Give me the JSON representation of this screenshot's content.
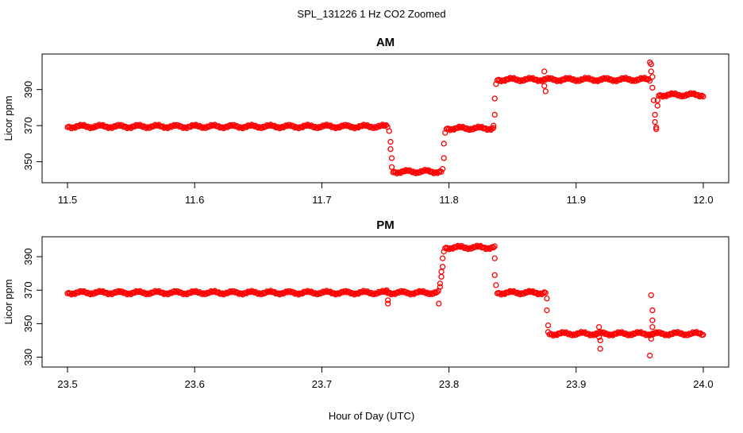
{
  "figure": {
    "title": "SPL_131226  1 Hz CO2 Zoomed",
    "xlabel": "Hour of Day (UTC)"
  },
  "chart_data": [
    {
      "type": "scatter",
      "title": "AM",
      "ylabel": "Licor ppm",
      "xlim": [
        11.5,
        12.0
      ],
      "ylim": [
        341,
        407
      ],
      "xticks": [
        "11.5",
        "11.6",
        "11.7",
        "11.8",
        "11.9",
        "12.0"
      ],
      "yticks": [
        "350",
        "370",
        "390"
      ],
      "marker_color": "#ff0000",
      "series": [
        {
          "segments": [
            {
              "x_start": 11.5,
              "x_end": 11.752,
              "y": 369.5
            },
            {
              "x_start": 11.756,
              "x_end": 11.794,
              "y": 344.5
            },
            {
              "x_start": 11.798,
              "x_end": 11.835,
              "y": 368.5
            },
            {
              "x_start": 11.838,
              "x_end": 11.958,
              "y": 395.5
            },
            {
              "x_start": 11.965,
              "x_end": 12.0,
              "y": 387.0
            }
          ],
          "points": [
            {
              "x": 11.753,
              "y": 367
            },
            {
              "x": 11.754,
              "y": 361
            },
            {
              "x": 11.754,
              "y": 357
            },
            {
              "x": 11.755,
              "y": 352
            },
            {
              "x": 11.755,
              "y": 347
            },
            {
              "x": 11.795,
              "y": 346
            },
            {
              "x": 11.796,
              "y": 352
            },
            {
              "x": 11.796,
              "y": 360
            },
            {
              "x": 11.797,
              "y": 366
            },
            {
              "x": 11.835,
              "y": 370
            },
            {
              "x": 11.836,
              "y": 376
            },
            {
              "x": 11.836,
              "y": 385
            },
            {
              "x": 11.837,
              "y": 393
            },
            {
              "x": 11.875,
              "y": 400
            },
            {
              "x": 11.875,
              "y": 392
            },
            {
              "x": 11.876,
              "y": 389
            },
            {
              "x": 11.958,
              "y": 405
            },
            {
              "x": 11.959,
              "y": 404
            },
            {
              "x": 11.959,
              "y": 400
            },
            {
              "x": 11.96,
              "y": 397
            },
            {
              "x": 11.96,
              "y": 391
            },
            {
              "x": 11.961,
              "y": 384
            },
            {
              "x": 11.962,
              "y": 376
            },
            {
              "x": 11.962,
              "y": 372
            },
            {
              "x": 11.963,
              "y": 369
            },
            {
              "x": 11.963,
              "y": 368
            },
            {
              "x": 11.964,
              "y": 381
            },
            {
              "x": 11.964,
              "y": 384
            }
          ]
        }
      ]
    },
    {
      "type": "scatter",
      "title": "PM",
      "ylabel": "Licor ppm",
      "xlim": [
        23.5,
        24.0
      ],
      "ylim": [
        327,
        399
      ],
      "xticks": [
        "23.5",
        "23.6",
        "23.7",
        "23.8",
        "23.9",
        "24.0"
      ],
      "yticks": [
        "330",
        "350",
        "370",
        "390"
      ],
      "marker_color": "#ff0000",
      "series": [
        {
          "segments": [
            {
              "x_start": 23.5,
              "x_end": 23.792,
              "y": 368.5
            },
            {
              "x_start": 23.797,
              "x_end": 23.836,
              "y": 395.5
            },
            {
              "x_start": 23.838,
              "x_end": 23.876,
              "y": 368.5
            },
            {
              "x_start": 23.879,
              "x_end": 24.0,
              "y": 344.0
            }
          ],
          "points": [
            {
              "x": 23.751,
              "y": 370
            },
            {
              "x": 23.752,
              "y": 364
            },
            {
              "x": 23.752,
              "y": 362
            },
            {
              "x": 23.792,
              "y": 362
            },
            {
              "x": 23.793,
              "y": 372
            },
            {
              "x": 23.793,
              "y": 374
            },
            {
              "x": 23.794,
              "y": 378
            },
            {
              "x": 23.794,
              "y": 381
            },
            {
              "x": 23.795,
              "y": 384
            },
            {
              "x": 23.795,
              "y": 389
            },
            {
              "x": 23.796,
              "y": 393
            },
            {
              "x": 23.836,
              "y": 389
            },
            {
              "x": 23.836,
              "y": 379
            },
            {
              "x": 23.837,
              "y": 373
            },
            {
              "x": 23.877,
              "y": 365
            },
            {
              "x": 23.877,
              "y": 358
            },
            {
              "x": 23.878,
              "y": 349
            },
            {
              "x": 23.878,
              "y": 345
            },
            {
              "x": 23.918,
              "y": 348
            },
            {
              "x": 23.918,
              "y": 342
            },
            {
              "x": 23.919,
              "y": 340
            },
            {
              "x": 23.919,
              "y": 335
            },
            {
              "x": 23.958,
              "y": 331
            },
            {
              "x": 23.959,
              "y": 341
            },
            {
              "x": 23.959,
              "y": 367
            },
            {
              "x": 23.96,
              "y": 358
            },
            {
              "x": 23.96,
              "y": 352
            },
            {
              "x": 23.96,
              "y": 348
            }
          ]
        }
      ]
    }
  ]
}
